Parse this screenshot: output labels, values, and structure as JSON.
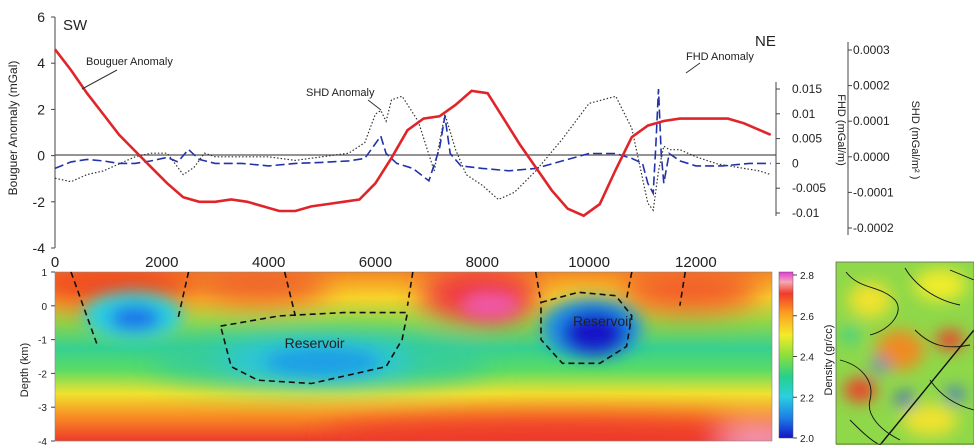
{
  "chart_data": [
    {
      "type": "line",
      "corner_labels": {
        "left": "SW",
        "right": "NE"
      },
      "xlim": [
        0,
        13500
      ],
      "x_ticks": [
        "0",
        "2000",
        "4000",
        "6000",
        "8000",
        "10000",
        "12000"
      ],
      "x_tick_values": [
        0,
        2000,
        4000,
        6000,
        8000,
        10000,
        12000
      ],
      "axes": {
        "left": {
          "label": "Bouguer Anomaly  (mGal)",
          "ylim": [
            -4,
            6
          ],
          "ticks": [
            "6",
            "4",
            "2",
            "0",
            "-2",
            "-4"
          ],
          "tick_values": [
            6,
            4,
            2,
            0,
            -2,
            -4
          ]
        },
        "fhd": {
          "label": "FHD (mGal/m)",
          "ylim": [
            -0.011,
            0.016
          ],
          "ticks": [
            "0.015",
            "0.01",
            "0.005",
            "0",
            "-0.005",
            "-0.01"
          ],
          "tick_values": [
            0.015,
            0.01,
            0.005,
            0,
            -0.005,
            -0.01
          ]
        },
        "shd": {
          "label": "SHD (mGal/m² )",
          "ylim": [
            -0.00025,
            0.00035
          ],
          "ticks": [
            "0.0003",
            "0.0002",
            "0.0001",
            "0.0000",
            "-0.0001",
            "-0.0002"
          ],
          "tick_values": [
            0.0003,
            0.0002,
            0.0001,
            0.0,
            -0.0001,
            -0.0002
          ]
        }
      },
      "annotations": [
        {
          "text": "Bouguer Anomaly",
          "target_x": 600,
          "target_y": 3.0
        },
        {
          "text": "SHD Anomaly",
          "target_x": 5900,
          "target_y": 1.8
        },
        {
          "text": "FHD Anomaly",
          "target_x": 11300,
          "target_y": 3.4
        }
      ],
      "series": [
        {
          "key": "bouguer",
          "color": "#e0252a",
          "style": "solid",
          "x": [
            0,
            300,
            600,
            900,
            1200,
            1500,
            1800,
            2100,
            2400,
            2700,
            3000,
            3300,
            3600,
            3900,
            4200,
            4500,
            4800,
            5100,
            5400,
            5700,
            6000,
            6300,
            6600,
            6900,
            7200,
            7500,
            7800,
            8100,
            8400,
            8700,
            9000,
            9300,
            9600,
            9900,
            10200,
            10500,
            10800,
            11100,
            11400,
            11700,
            12000,
            12300,
            12600,
            12900,
            13200,
            13400
          ],
          "y": [
            4.6,
            3.7,
            2.7,
            1.8,
            0.9,
            0.2,
            -0.5,
            -1.2,
            -1.8,
            -2.0,
            -2.0,
            -1.9,
            -2.0,
            -2.2,
            -2.4,
            -2.4,
            -2.2,
            -2.1,
            -2.0,
            -1.9,
            -1.2,
            -0.1,
            1.1,
            1.6,
            1.7,
            2.2,
            2.8,
            2.7,
            1.6,
            0.5,
            -0.5,
            -1.5,
            -2.3,
            -2.6,
            -2.1,
            -0.6,
            0.8,
            1.3,
            1.5,
            1.6,
            1.6,
            1.6,
            1.6,
            1.4,
            1.1,
            0.9
          ]
        },
        {
          "key": "fhd",
          "color": "#2233aa",
          "style": "dashed",
          "x": [
            0,
            300,
            600,
            900,
            1200,
            1500,
            1800,
            2100,
            2300,
            2500,
            2700,
            3000,
            3500,
            4000,
            4500,
            5000,
            5500,
            5800,
            6000,
            6100,
            6200,
            6400,
            6700,
            7000,
            7200,
            7300,
            7400,
            7600,
            8000,
            8500,
            9000,
            9500,
            10000,
            10500,
            10800,
            11000,
            11100,
            11200,
            11250,
            11300,
            11350,
            11400,
            11500,
            11700,
            12000,
            12500,
            13000,
            13400
          ],
          "y": [
            -0.001,
            0.0003,
            0.0008,
            0.0005,
            0.0,
            0.0,
            0.0005,
            0.0012,
            0.0003,
            0.0028,
            0.0008,
            0.0,
            0.0,
            -0.0005,
            0.0,
            0.0002,
            0.0005,
            0.001,
            0.004,
            0.0055,
            0.002,
            0.0,
            -0.001,
            -0.0035,
            0.003,
            0.0095,
            0.002,
            -0.0005,
            -0.001,
            -0.0015,
            -0.001,
            0.0005,
            0.002,
            0.002,
            0.001,
            0.0,
            -0.004,
            -0.006,
            0.0035,
            0.015,
            0.002,
            -0.004,
            0.002,
            0.0005,
            -0.0005,
            -0.0005,
            0.0,
            0.0
          ]
        },
        {
          "key": "shd",
          "color": "#333333",
          "style": "dotted",
          "x": [
            0,
            300,
            600,
            900,
            1200,
            1500,
            1800,
            2100,
            2400,
            2600,
            2800,
            3000,
            3500,
            4000,
            4500,
            5000,
            5500,
            5800,
            6000,
            6100,
            6200,
            6300,
            6500,
            6800,
            7100,
            7300,
            7500,
            7700,
            8000,
            8300,
            8600,
            9000,
            9500,
            10000,
            10500,
            10800,
            11100,
            11200,
            11300,
            11400,
            11500,
            11700,
            12000,
            12400,
            12800,
            13200,
            13400
          ],
          "y": [
            -6e-05,
            -7e-05,
            -5e-05,
            -4e-05,
            -2e-05,
            0.0,
            1e-05,
            1e-05,
            -5e-05,
            -3e-05,
            1e-05,
            0.0,
            0.0,
            0.0,
            -1e-05,
            0.0,
            1e-05,
            4e-05,
            0.00012,
            0.00013,
            0.0001,
            0.00016,
            0.00017,
            0.0001,
            -4e-05,
            0.00012,
            2e-05,
            -5e-05,
            -8e-05,
            -0.00012,
            -0.0001,
            -4e-05,
            5e-05,
            0.00015,
            0.00017,
            8e-05,
            -0.00013,
            -0.00015,
            -4e-05,
            3e-05,
            2e-05,
            2e-05,
            0.0,
            -2e-05,
            -3e-05,
            -4e-05,
            -5e-05
          ]
        }
      ]
    },
    {
      "type": "heatmap",
      "ylabel": "Depth (km)",
      "xlim": [
        0,
        13500
      ],
      "ylim": [
        -4,
        1
      ],
      "y_ticks": [
        "1",
        "0",
        "-1",
        "-2",
        "-3",
        "-4"
      ],
      "y_tick_values": [
        1,
        0,
        -1,
        -2,
        -3,
        -4
      ],
      "colorbar": {
        "label": "Density (gr/cc)",
        "range": [
          2.0,
          2.8
        ],
        "ticks": [
          "2.8",
          "2.6",
          "2.4",
          "2.2",
          "2.0"
        ],
        "tick_values": [
          2.8,
          2.6,
          2.4,
          2.2,
          2.0
        ]
      },
      "background_density": [
        {
          "depth_top": 1,
          "value": 2.62
        },
        {
          "depth_top": -0.5,
          "value": 2.42
        },
        {
          "depth_top": -1.5,
          "value": 2.3
        },
        {
          "depth_top": -2.6,
          "value": 2.45
        },
        {
          "depth_top": -3.3,
          "value": 2.62
        }
      ],
      "density_bodies": [
        {
          "x": 1200,
          "depth": -0.4,
          "value": 2.05
        },
        {
          "x": 5000,
          "depth": -1.8,
          "value": 2.15
        },
        {
          "x": 9900,
          "depth": -1.0,
          "value": 2.0
        },
        {
          "x": 8200,
          "depth": -0.3,
          "value": 2.72
        },
        {
          "x": 2000,
          "depth": 0.7,
          "value": 2.7
        },
        {
          "x": 12900,
          "depth": -3.7,
          "value": 2.8
        }
      ],
      "reservoirs": [
        {
          "label": "Reservoir",
          "label_x": 4300,
          "label_depth": -1.25,
          "outline_x": [
            3100,
            4200,
            5400,
            6600,
            6500,
            6200,
            4800,
            3800,
            3300,
            3100
          ],
          "outline_depth": [
            -0.6,
            -0.3,
            -0.2,
            -0.2,
            -1.0,
            -1.8,
            -2.3,
            -2.2,
            -1.8,
            -0.6
          ]
        },
        {
          "label": "Reservoir",
          "label_x": 9700,
          "label_depth": -0.6,
          "outline_x": [
            9100,
            9800,
            10500,
            10800,
            10700,
            10200,
            9500,
            9100,
            9100
          ],
          "outline_depth": [
            0.1,
            0.4,
            0.3,
            -0.3,
            -1.2,
            -1.7,
            -1.7,
            -1.0,
            0.1
          ]
        }
      ],
      "faults": [
        {
          "x": [
            300,
            800
          ],
          "depth": [
            1.0,
            -1.2
          ]
        },
        {
          "x": [
            2500,
            2300
          ],
          "depth": [
            1.0,
            -0.4
          ]
        },
        {
          "x": [
            4300,
            4500
          ],
          "depth": [
            1.0,
            -0.3
          ]
        },
        {
          "x": [
            6700,
            6600
          ],
          "depth": [
            1.0,
            0.0
          ]
        },
        {
          "x": [
            9000,
            9100
          ],
          "depth": [
            1.0,
            0.1
          ]
        },
        {
          "x": [
            10800,
            10700
          ],
          "depth": [
            1.0,
            0.2
          ]
        },
        {
          "x": [
            11800,
            11700
          ],
          "depth": [
            1.0,
            0.0
          ]
        }
      ]
    }
  ]
}
